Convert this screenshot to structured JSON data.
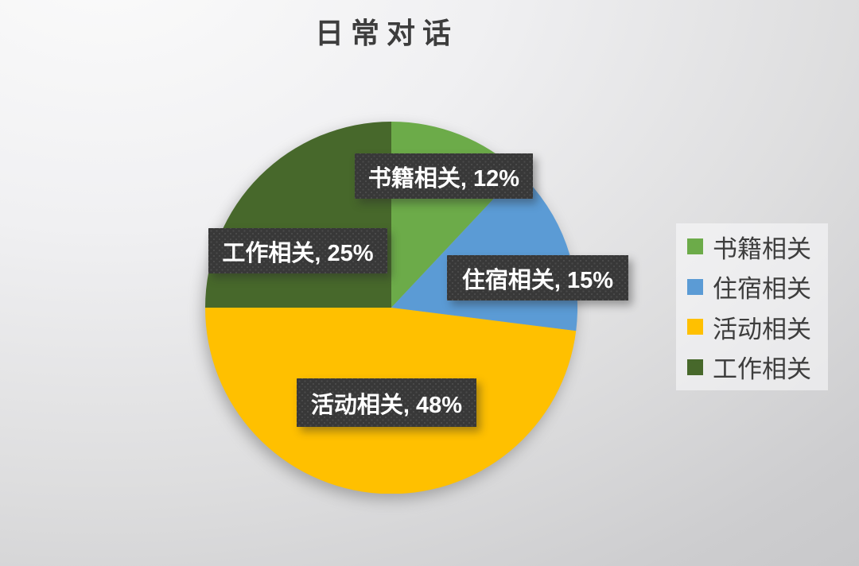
{
  "chart_data": {
    "type": "pie",
    "title": "日常对话",
    "start_angle_deg": 0,
    "direction": "clockwise",
    "legend_position": "right",
    "slices": [
      {
        "id": "book-related",
        "label": "书籍相关",
        "value": 12,
        "color": "#6cab49",
        "data_label": "书籍相关, 12%"
      },
      {
        "id": "accommodation-related",
        "label": "住宿相关",
        "value": 15,
        "color": "#5b9bd5",
        "data_label": "住宿相关, 15%"
      },
      {
        "id": "activity-related",
        "label": "活动相关",
        "value": 48,
        "color": "#ffc000",
        "data_label": "活动相关, 48%"
      },
      {
        "id": "work-related",
        "label": "工作相关",
        "value": 25,
        "color": "#47682b",
        "data_label": "工作相关, 25%"
      }
    ],
    "colors": {
      "label_box_background": "#383838",
      "label_text": "#ffffff",
      "title_text": "#3d3d3d",
      "legend_text": "#3d3d3d"
    }
  }
}
